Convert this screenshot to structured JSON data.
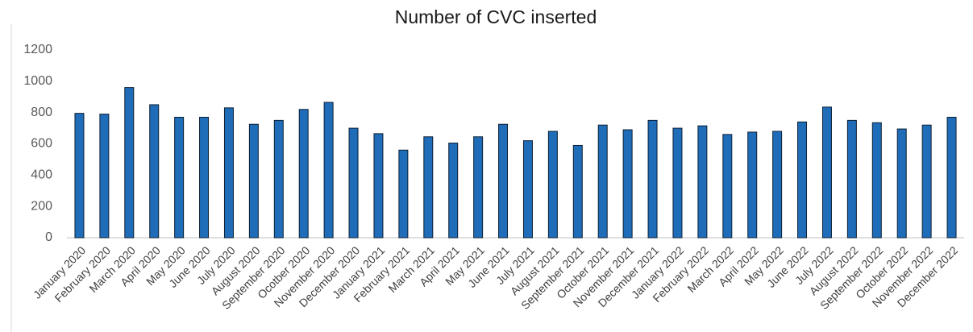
{
  "chart_data": {
    "type": "bar",
    "title": "Number of CVC inserted",
    "categories": [
      "January 2020",
      "February 2020",
      "March 2020",
      "April 2020",
      "May 2020",
      "June 2020",
      "July 2020",
      "August 2020",
      "September 2020",
      "Ocotber 2020",
      "November 2020",
      "December 2020",
      "January 2021",
      "February 2021",
      "March 2021",
      "April 2021",
      "May 2021",
      "June 2021",
      "July 2021",
      "August 2021",
      "September 2021",
      "October 2021",
      "November 2021",
      "December 2021",
      "January 2022",
      "February 2022",
      "March 2022",
      "April 2022",
      "May 2022",
      "June 2022",
      "July 2022",
      "August 2022",
      "September 2022",
      "October 2022",
      "November 2022",
      "December 2022"
    ],
    "values": [
      795,
      790,
      960,
      850,
      770,
      770,
      830,
      725,
      750,
      820,
      865,
      700,
      665,
      560,
      645,
      605,
      645,
      725,
      620,
      680,
      590,
      720,
      690,
      750,
      700,
      715,
      660,
      675,
      680,
      740,
      835,
      750,
      735,
      695,
      720,
      770
    ],
    "color": "#1f6cb8",
    "ylim": [
      0,
      1200
    ],
    "yticks": [
      0,
      200,
      400,
      600,
      800,
      1000,
      1200
    ],
    "grid": false
  }
}
